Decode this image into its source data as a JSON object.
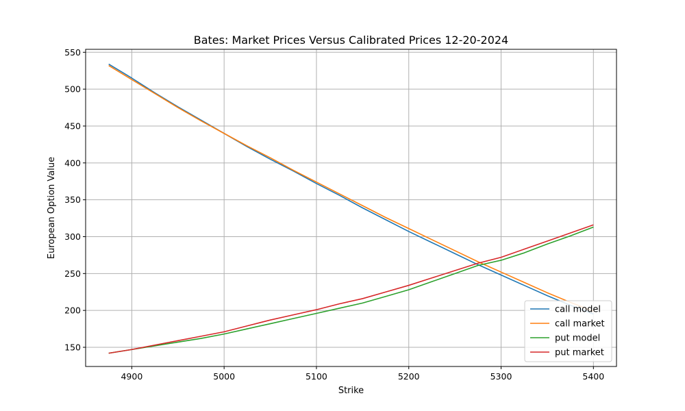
{
  "chart_data": {
    "type": "line",
    "title": "Bates: Market Prices Versus Calibrated Prices 12-20-2024",
    "xlabel": "Strike",
    "ylabel": "European Option Value",
    "xlim": [
      4850,
      5425
    ],
    "ylim": [
      124,
      554
    ],
    "xticks": [
      4900,
      5000,
      5100,
      5200,
      5300,
      5400
    ],
    "yticks": [
      150,
      200,
      250,
      300,
      350,
      400,
      450,
      500,
      550
    ],
    "grid": true,
    "legend_position": "lower-right",
    "x": [
      4875,
      4900,
      4925,
      4950,
      4975,
      5000,
      5025,
      5050,
      5075,
      5100,
      5125,
      5150,
      5175,
      5200,
      5225,
      5250,
      5275,
      5300,
      5325,
      5350,
      5375,
      5400
    ],
    "series": [
      {
        "name": "call model",
        "color": "#1f77b4",
        "values": [
          534,
          515,
          495,
          476,
          458,
          440,
          422,
          405,
          389,
          372,
          356,
          339,
          323,
          307,
          292,
          277,
          262,
          248,
          234,
          220,
          207,
          195
        ]
      },
      {
        "name": "call market",
        "color": "#ff7f0e",
        "values": [
          532,
          513,
          494,
          475,
          457,
          440,
          423,
          407,
          390,
          374,
          358,
          342,
          326,
          311,
          296,
          281,
          266,
          252,
          238,
          224,
          211,
          199
        ]
      },
      {
        "name": "put model",
        "color": "#2ca02c",
        "values": [
          142,
          147,
          152,
          157,
          162,
          168,
          175,
          182,
          189,
          196,
          203,
          210,
          219,
          228,
          239,
          250,
          261,
          268,
          278,
          290,
          301,
          313
        ]
      },
      {
        "name": "put market",
        "color": "#d62728",
        "values": [
          142,
          147,
          153,
          159,
          165,
          171,
          179,
          187,
          194,
          201,
          209,
          216,
          225,
          234,
          244,
          254,
          264,
          272,
          283,
          294,
          305,
          316
        ]
      }
    ]
  }
}
